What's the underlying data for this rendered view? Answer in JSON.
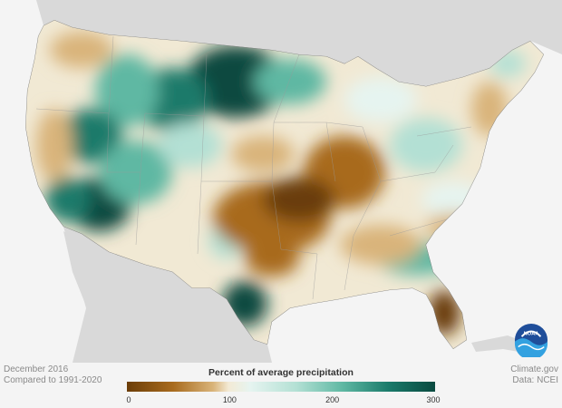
{
  "legend": {
    "title": "Percent of average precipitation",
    "ticks": [
      "0",
      "100",
      "200",
      "300"
    ],
    "tick_values": [
      0,
      100,
      200,
      300
    ],
    "range": [
      0,
      300
    ],
    "colors": [
      "#6b3d08",
      "#a86b1e",
      "#d9b47a",
      "#f3ead5",
      "#e6f4f0",
      "#b3e0d4",
      "#5fb8a3",
      "#1a7a6a",
      "#0a4a40"
    ]
  },
  "footer": {
    "date": "December 2016",
    "baseline": "Compared to 1991-2020",
    "source_site": "Climate.gov",
    "source_data": "Data: NCEI"
  },
  "logo": {
    "text": "NOAA",
    "icon": "noaa-logo-icon"
  },
  "map": {
    "background": "#ececec",
    "land_outside": "#d9d9d9",
    "water": "#f4f4f4"
  }
}
